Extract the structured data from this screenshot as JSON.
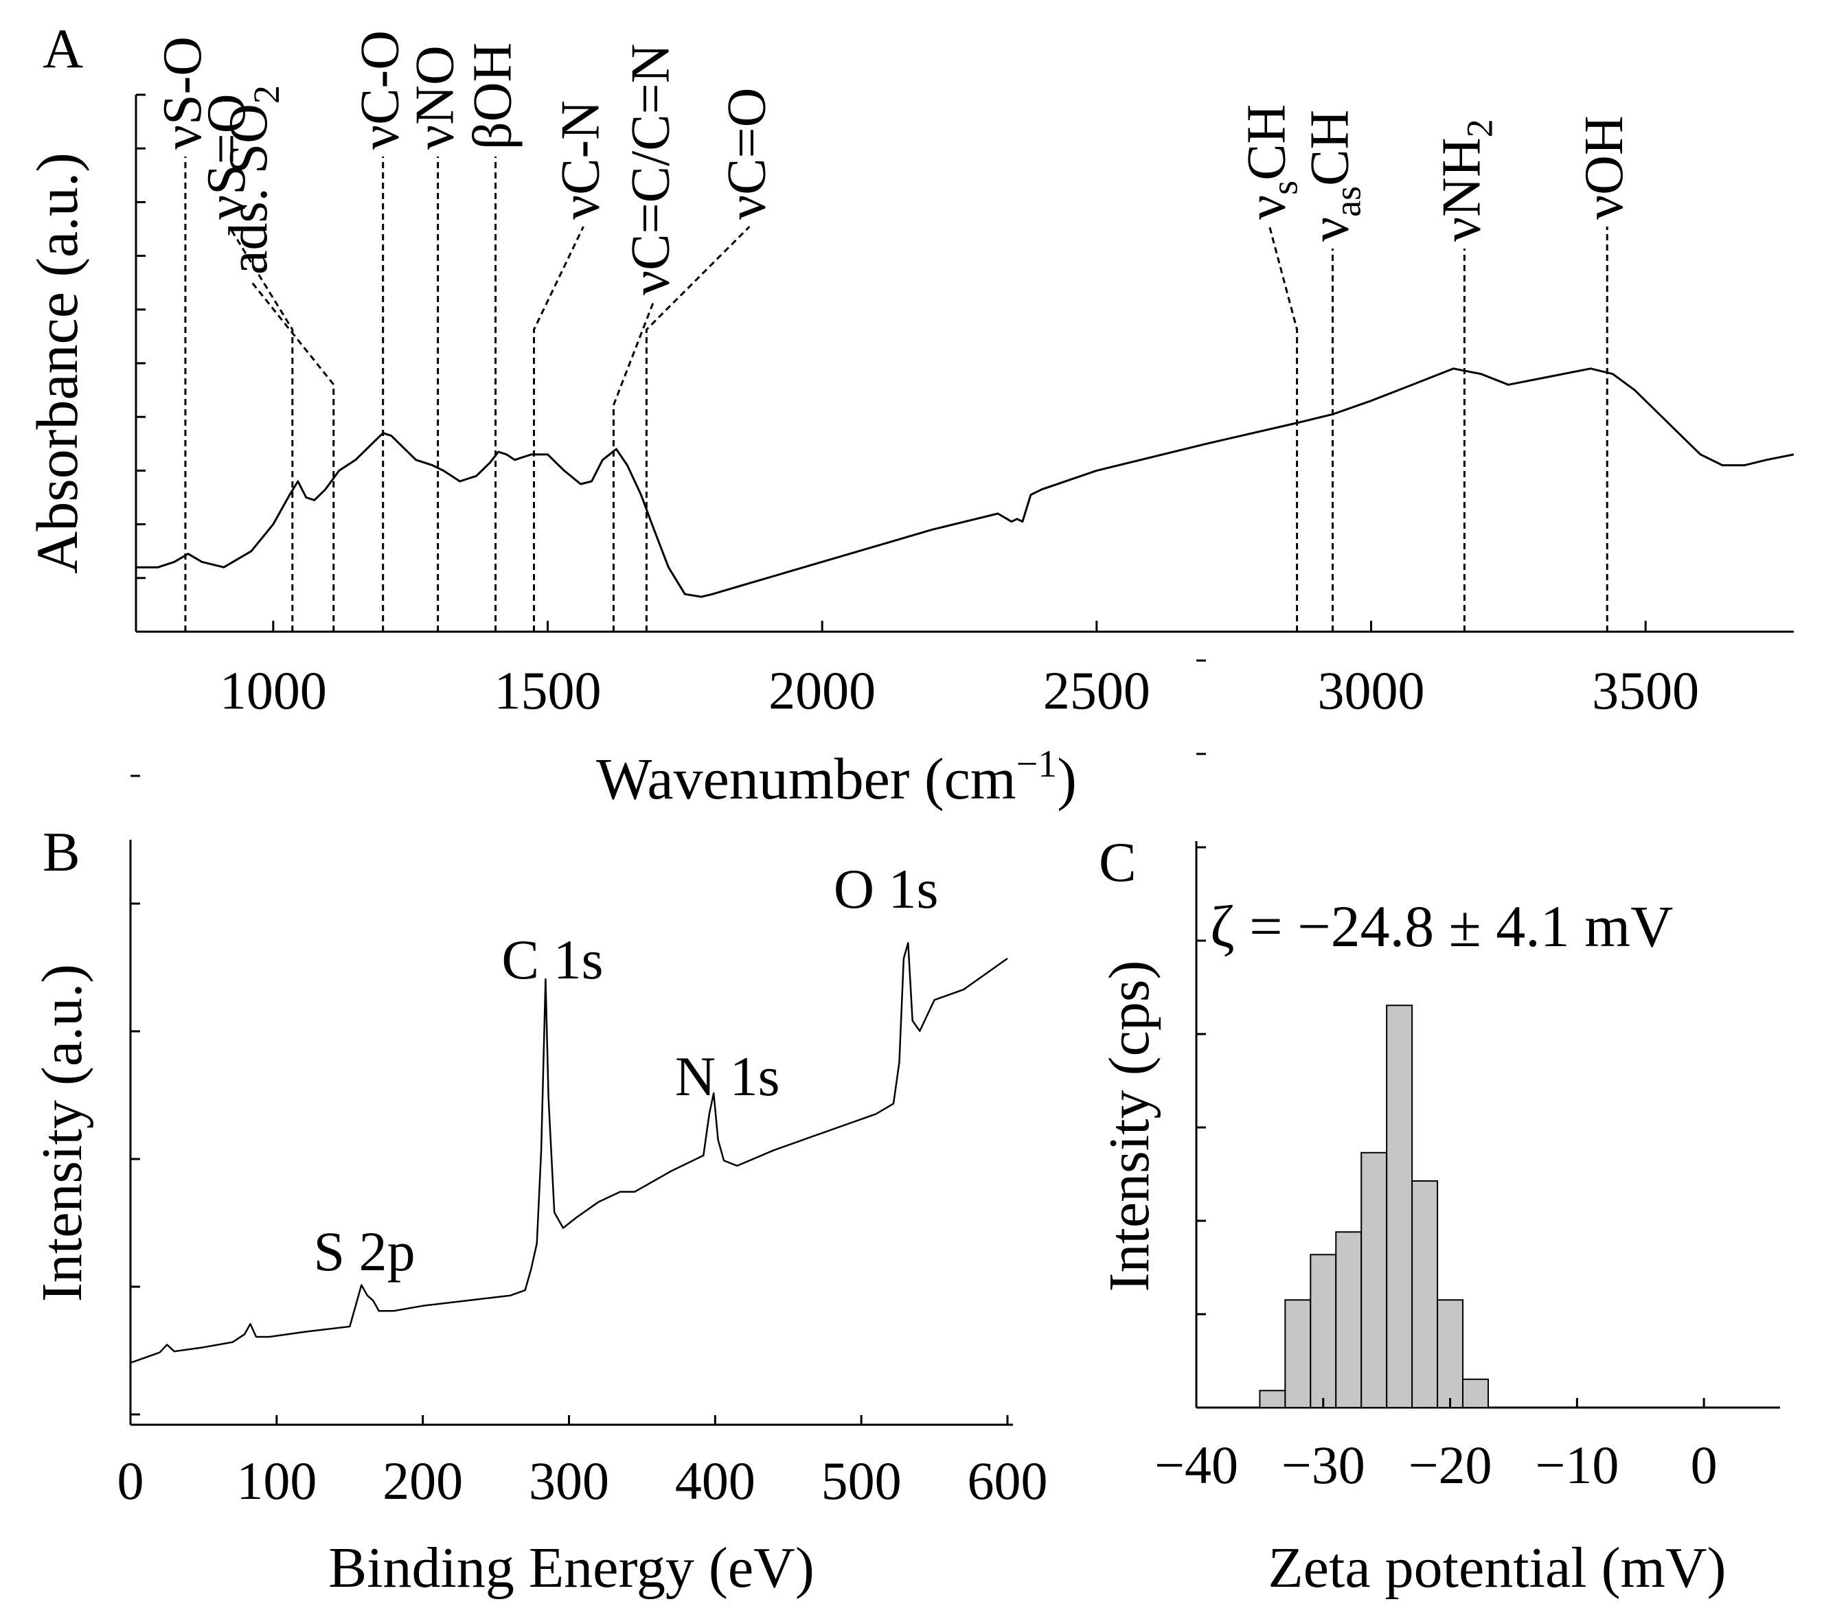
{
  "chart_data": [
    {
      "panel": "A",
      "type": "line",
      "xlabel": "Wavenumber (cm",
      "xlabel_sup": "−1",
      "xlabel_end": ")",
      "ylabel": "Absorbance (a.u.)",
      "xlim": [
        750,
        3770
      ],
      "ylim": [
        0,
        1
      ],
      "xticks": [
        1000,
        1500,
        2000,
        2500,
        3000,
        3500
      ],
      "x": [
        750,
        790,
        820,
        845,
        870,
        910,
        960,
        1000,
        1030,
        1045,
        1060,
        1075,
        1095,
        1120,
        1150,
        1180,
        1200,
        1215,
        1230,
        1260,
        1290,
        1310,
        1340,
        1370,
        1395,
        1410,
        1425,
        1440,
        1470,
        1500,
        1530,
        1560,
        1580,
        1600,
        1625,
        1645,
        1670,
        1690,
        1720,
        1750,
        1780,
        1800,
        1850,
        1900,
        2000,
        2100,
        2200,
        2280,
        2320,
        2345,
        2355,
        2365,
        2380,
        2400,
        2500,
        2700,
        2870,
        2930,
        3000,
        3050,
        3100,
        3150,
        3200,
        3250,
        3300,
        3350,
        3400,
        3440,
        3480,
        3520,
        3560,
        3600,
        3640,
        3680,
        3720,
        3770
      ],
      "y": [
        0.12,
        0.12,
        0.13,
        0.145,
        0.13,
        0.12,
        0.15,
        0.2,
        0.255,
        0.28,
        0.25,
        0.245,
        0.265,
        0.3,
        0.32,
        0.35,
        0.37,
        0.365,
        0.35,
        0.32,
        0.31,
        0.3,
        0.28,
        0.29,
        0.315,
        0.335,
        0.33,
        0.32,
        0.33,
        0.33,
        0.3,
        0.275,
        0.28,
        0.32,
        0.34,
        0.31,
        0.255,
        0.2,
        0.12,
        0.07,
        0.065,
        0.07,
        0.085,
        0.1,
        0.13,
        0.16,
        0.19,
        0.21,
        0.22,
        0.205,
        0.21,
        0.205,
        0.255,
        0.265,
        0.3,
        0.35,
        0.39,
        0.405,
        0.43,
        0.45,
        0.47,
        0.49,
        0.48,
        0.46,
        0.47,
        0.48,
        0.49,
        0.48,
        0.45,
        0.41,
        0.37,
        0.33,
        0.31,
        0.31,
        0.32,
        0.33
      ],
      "annotations": [
        {
          "label": "νS-O",
          "x": 840
        },
        {
          "label": "νS=O",
          "x": 1035
        },
        {
          "label": "ads. SO",
          "sub": "2",
          "x": 1110
        },
        {
          "label": "νC-O",
          "x": 1200
        },
        {
          "label": "νNO",
          "x": 1300
        },
        {
          "label": "βOH",
          "x": 1405
        },
        {
          "label": "νC-N",
          "x": 1475
        },
        {
          "label": "νC=C/C=N",
          "x": 1620
        },
        {
          "label": "νC=O",
          "x": 1680
        },
        {
          "label": "ν",
          "sub": "s",
          "label_end": "CH",
          "x": 2865
        },
        {
          "label": "ν",
          "sub": "as",
          "label_end": "CH",
          "x": 2930
        },
        {
          "label": "νNH",
          "sub": "2",
          "x": 3170
        },
        {
          "label": "νOH",
          "x": 3430
        }
      ]
    },
    {
      "panel": "B",
      "type": "line",
      "xlabel": "Binding Energy (eV)",
      "ylabel": "Intensity (a.u.)",
      "xlim": [
        0,
        600
      ],
      "ylim": [
        0,
        1
      ],
      "xticks": [
        0,
        100,
        200,
        300,
        400,
        500,
        600
      ],
      "x": [
        0,
        20,
        25,
        30,
        50,
        70,
        78,
        82,
        86,
        95,
        120,
        150,
        154,
        158,
        162,
        166,
        170,
        180,
        200,
        230,
        260,
        270,
        274,
        278,
        281,
        284,
        286,
        290,
        296,
        305,
        320,
        335,
        345,
        370,
        392,
        396,
        399,
        402,
        406,
        415,
        440,
        470,
        490,
        510,
        522,
        526,
        529,
        532,
        535,
        540,
        550,
        570,
        590,
        600
      ],
      "y": [
        0.04,
        0.06,
        0.075,
        0.062,
        0.07,
        0.08,
        0.095,
        0.115,
        0.09,
        0.09,
        0.1,
        0.11,
        0.15,
        0.19,
        0.17,
        0.16,
        0.14,
        0.14,
        0.15,
        0.16,
        0.17,
        0.18,
        0.22,
        0.27,
        0.45,
        0.78,
        0.55,
        0.33,
        0.3,
        0.32,
        0.35,
        0.37,
        0.37,
        0.41,
        0.44,
        0.52,
        0.56,
        0.47,
        0.43,
        0.42,
        0.45,
        0.48,
        0.5,
        0.52,
        0.54,
        0.62,
        0.82,
        0.85,
        0.7,
        0.68,
        0.74,
        0.76,
        0.8,
        0.82
      ],
      "annotations": [
        {
          "label": "S 2p",
          "x": 160
        },
        {
          "label": "C 1s",
          "x": 284
        },
        {
          "label": "N 1s",
          "x": 399
        },
        {
          "label": "O 1s",
          "x": 531
        }
      ]
    },
    {
      "panel": "C",
      "type": "bar",
      "title": "ζ = −24.8 ± 4.1 mV",
      "xlabel": "Zeta potential (mV)",
      "ylabel": "Intensity (cps)",
      "xlim": [
        -40,
        6
      ],
      "ylim": [
        0,
        1
      ],
      "xticks": [
        -40,
        -30,
        -20,
        -10,
        0
      ],
      "xtick_labels": [
        "−40",
        "−30",
        "−20",
        "−10",
        "0"
      ],
      "bin_width": 2,
      "x": [
        -34,
        -32,
        -30,
        -28,
        -26,
        -24,
        -22,
        -20,
        -18
      ],
      "values": [
        0.03,
        0.19,
        0.27,
        0.31,
        0.45,
        0.71,
        0.4,
        0.19,
        0.05
      ]
    }
  ],
  "panel_labels": {
    "a": "A",
    "b": "B",
    "c": "C"
  }
}
